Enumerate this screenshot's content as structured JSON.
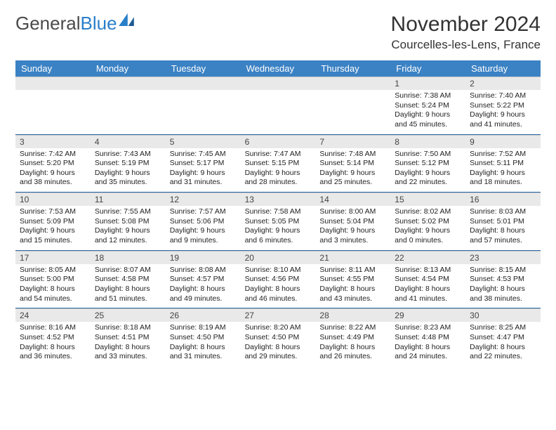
{
  "logo": {
    "text1": "General",
    "text2": "Blue"
  },
  "title": "November 2024",
  "location": "Courcelles-les-Lens, France",
  "colors": {
    "header_bg": "#3b82c4",
    "header_text": "#ffffff",
    "daynum_bg": "#e9e9e9",
    "week_divider": "#2a6aa8",
    "logo_gray": "#4a4a4a",
    "logo_blue": "#2a7fc9",
    "page_bg": "#ffffff"
  },
  "day_labels": [
    "Sunday",
    "Monday",
    "Tuesday",
    "Wednesday",
    "Thursday",
    "Friday",
    "Saturday"
  ],
  "weeks": [
    {
      "nums": [
        "",
        "",
        "",
        "",
        "",
        "1",
        "2"
      ],
      "cells": [
        null,
        null,
        null,
        null,
        null,
        {
          "sunrise": "7:38 AM",
          "sunset": "5:24 PM",
          "daylight": "9 hours and 45 minutes."
        },
        {
          "sunrise": "7:40 AM",
          "sunset": "5:22 PM",
          "daylight": "9 hours and 41 minutes."
        }
      ]
    },
    {
      "nums": [
        "3",
        "4",
        "5",
        "6",
        "7",
        "8",
        "9"
      ],
      "cells": [
        {
          "sunrise": "7:42 AM",
          "sunset": "5:20 PM",
          "daylight": "9 hours and 38 minutes."
        },
        {
          "sunrise": "7:43 AM",
          "sunset": "5:19 PM",
          "daylight": "9 hours and 35 minutes."
        },
        {
          "sunrise": "7:45 AM",
          "sunset": "5:17 PM",
          "daylight": "9 hours and 31 minutes."
        },
        {
          "sunrise": "7:47 AM",
          "sunset": "5:15 PM",
          "daylight": "9 hours and 28 minutes."
        },
        {
          "sunrise": "7:48 AM",
          "sunset": "5:14 PM",
          "daylight": "9 hours and 25 minutes."
        },
        {
          "sunrise": "7:50 AM",
          "sunset": "5:12 PM",
          "daylight": "9 hours and 22 minutes."
        },
        {
          "sunrise": "7:52 AM",
          "sunset": "5:11 PM",
          "daylight": "9 hours and 18 minutes."
        }
      ]
    },
    {
      "nums": [
        "10",
        "11",
        "12",
        "13",
        "14",
        "15",
        "16"
      ],
      "cells": [
        {
          "sunrise": "7:53 AM",
          "sunset": "5:09 PM",
          "daylight": "9 hours and 15 minutes."
        },
        {
          "sunrise": "7:55 AM",
          "sunset": "5:08 PM",
          "daylight": "9 hours and 12 minutes."
        },
        {
          "sunrise": "7:57 AM",
          "sunset": "5:06 PM",
          "daylight": "9 hours and 9 minutes."
        },
        {
          "sunrise": "7:58 AM",
          "sunset": "5:05 PM",
          "daylight": "9 hours and 6 minutes."
        },
        {
          "sunrise": "8:00 AM",
          "sunset": "5:04 PM",
          "daylight": "9 hours and 3 minutes."
        },
        {
          "sunrise": "8:02 AM",
          "sunset": "5:02 PM",
          "daylight": "9 hours and 0 minutes."
        },
        {
          "sunrise": "8:03 AM",
          "sunset": "5:01 PM",
          "daylight": "8 hours and 57 minutes."
        }
      ]
    },
    {
      "nums": [
        "17",
        "18",
        "19",
        "20",
        "21",
        "22",
        "23"
      ],
      "cells": [
        {
          "sunrise": "8:05 AM",
          "sunset": "5:00 PM",
          "daylight": "8 hours and 54 minutes."
        },
        {
          "sunrise": "8:07 AM",
          "sunset": "4:58 PM",
          "daylight": "8 hours and 51 minutes."
        },
        {
          "sunrise": "8:08 AM",
          "sunset": "4:57 PM",
          "daylight": "8 hours and 49 minutes."
        },
        {
          "sunrise": "8:10 AM",
          "sunset": "4:56 PM",
          "daylight": "8 hours and 46 minutes."
        },
        {
          "sunrise": "8:11 AM",
          "sunset": "4:55 PM",
          "daylight": "8 hours and 43 minutes."
        },
        {
          "sunrise": "8:13 AM",
          "sunset": "4:54 PM",
          "daylight": "8 hours and 41 minutes."
        },
        {
          "sunrise": "8:15 AM",
          "sunset": "4:53 PM",
          "daylight": "8 hours and 38 minutes."
        }
      ]
    },
    {
      "nums": [
        "24",
        "25",
        "26",
        "27",
        "28",
        "29",
        "30"
      ],
      "cells": [
        {
          "sunrise": "8:16 AM",
          "sunset": "4:52 PM",
          "daylight": "8 hours and 36 minutes."
        },
        {
          "sunrise": "8:18 AM",
          "sunset": "4:51 PM",
          "daylight": "8 hours and 33 minutes."
        },
        {
          "sunrise": "8:19 AM",
          "sunset": "4:50 PM",
          "daylight": "8 hours and 31 minutes."
        },
        {
          "sunrise": "8:20 AM",
          "sunset": "4:50 PM",
          "daylight": "8 hours and 29 minutes."
        },
        {
          "sunrise": "8:22 AM",
          "sunset": "4:49 PM",
          "daylight": "8 hours and 26 minutes."
        },
        {
          "sunrise": "8:23 AM",
          "sunset": "4:48 PM",
          "daylight": "8 hours and 24 minutes."
        },
        {
          "sunrise": "8:25 AM",
          "sunset": "4:47 PM",
          "daylight": "8 hours and 22 minutes."
        }
      ]
    }
  ],
  "labels": {
    "sunrise": "Sunrise: ",
    "sunset": "Sunset: ",
    "daylight": "Daylight: "
  }
}
